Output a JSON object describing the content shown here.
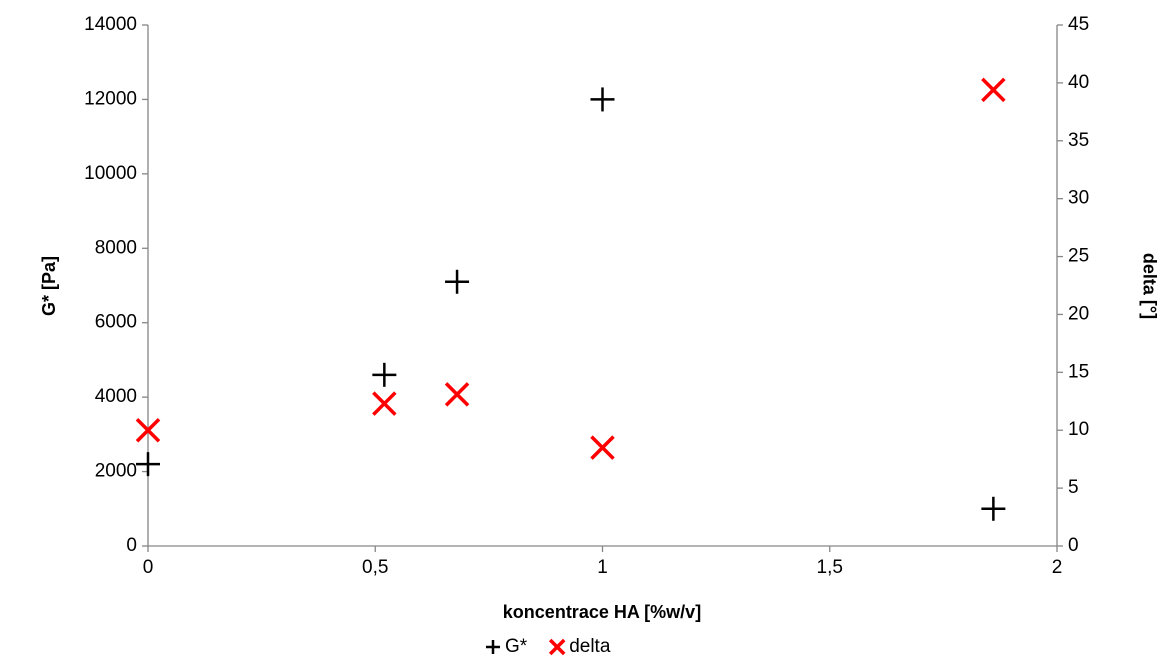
{
  "chart_data": {
    "type": "scatter",
    "x_label": "koncentrace HA [%w/v]",
    "y_label": "G* [Pa]",
    "y2_label": "delta [°]",
    "xlim": [
      0,
      2
    ],
    "xticks": [
      0,
      {
        "value": 0.5,
        "label": "0,5"
      },
      1,
      {
        "value": 1.5,
        "label": "1,5"
      },
      2
    ],
    "ylim": [
      0,
      14000
    ],
    "yticks": [
      0,
      2000,
      4000,
      6000,
      8000,
      10000,
      12000,
      14000
    ],
    "y2lim": [
      0,
      45
    ],
    "y2ticks": [
      0,
      5,
      10,
      15,
      20,
      25,
      30,
      35,
      40,
      45
    ],
    "grid": false,
    "legend": "bottom",
    "series": [
      {
        "name": "G*",
        "color": "#000000",
        "marker": "plus",
        "x": [
          0,
          0.52,
          0.68,
          1,
          1.86
        ],
        "values": [
          2200,
          4600,
          7100,
          12000,
          1000
        ]
      },
      {
        "name": "delta",
        "color": "#ff0000",
        "marker": "cross",
        "axis": "y2",
        "x": [
          0,
          0.52,
          0.68,
          1,
          1.86
        ],
        "values": [
          10,
          12.3,
          13.1,
          8.5,
          39.4
        ]
      }
    ]
  }
}
